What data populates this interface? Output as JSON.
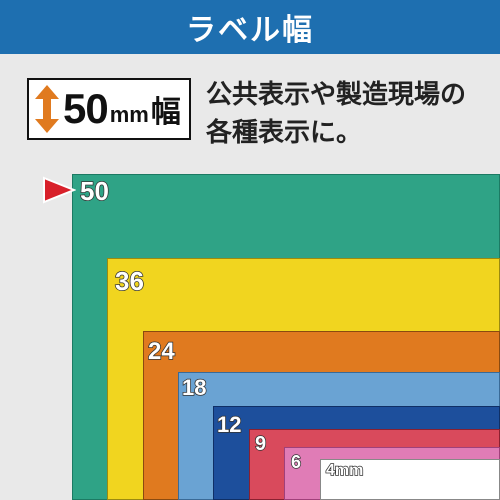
{
  "header": {
    "title": "ラベル幅"
  },
  "badge": {
    "number": "50",
    "unit": "mm",
    "kanji": "幅",
    "arrow_color": "#e07a1f"
  },
  "description": {
    "line1": "公共表示や製造現場の",
    "line2": "各種表示に。"
  },
  "pointer_color": "#d8202a",
  "labels": [
    {
      "width": "50",
      "color": "#2fa386"
    },
    {
      "width": "36",
      "color": "#f1d51f"
    },
    {
      "width": "24",
      "color": "#e07a1f"
    },
    {
      "width": "18",
      "color": "#6aa3d3"
    },
    {
      "width": "12",
      "color": "#1d4f9c"
    },
    {
      "width": "9",
      "color": "#d94a5c"
    },
    {
      "width": "6",
      "color": "#e07cb6"
    },
    {
      "width": "4mm",
      "color": "#ffffff"
    }
  ]
}
